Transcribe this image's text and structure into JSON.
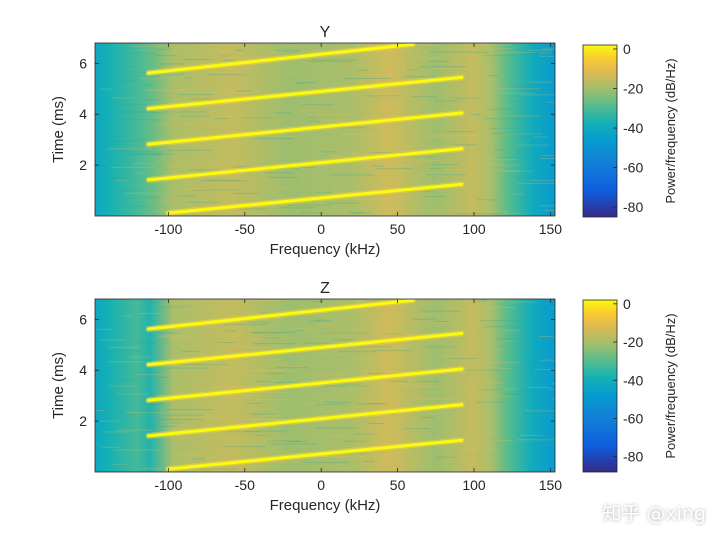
{
  "chart_data": [
    {
      "type": "heatmap",
      "title": "Y",
      "xlabel": "Frequency (kHz)",
      "ylabel": "Time (ms)",
      "xlim": [
        -148,
        153
      ],
      "ylim": [
        0,
        6.8
      ],
      "xticks": [
        -100,
        -50,
        0,
        50,
        100,
        150
      ],
      "yticks": [
        2,
        4,
        6
      ],
      "colorbar": {
        "label": "Power/frequency (dB/Hz)",
        "range": [
          -85,
          2
        ],
        "ticks": [
          0,
          -20,
          -40,
          -60,
          -80
        ]
      },
      "chirps": [
        {
          "t_start": 0.0,
          "t_end": 1.3,
          "f_start": -100,
          "f_end": 92
        },
        {
          "t_start": 1.3,
          "t_end": 2.7,
          "f_start": -113,
          "f_end": 92
        },
        {
          "t_start": 2.7,
          "t_end": 4.1,
          "f_start": -113,
          "f_end": 92
        },
        {
          "t_start": 4.1,
          "t_end": 5.5,
          "f_start": -113,
          "f_end": 92
        },
        {
          "t_start": 5.5,
          "t_end": 6.8,
          "f_start": -113,
          "f_end": 60
        }
      ]
    },
    {
      "type": "heatmap",
      "title": "Z",
      "xlabel": "Frequency (kHz)",
      "ylabel": "Time (ms)",
      "xlim": [
        -148,
        153
      ],
      "ylim": [
        0,
        6.8
      ],
      "xticks": [
        -100,
        -50,
        0,
        50,
        100,
        150
      ],
      "yticks": [
        2,
        4,
        6
      ],
      "colorbar": {
        "label": "Power/frequency (dB/Hz)",
        "range": [
          -88,
          2
        ],
        "ticks": [
          0,
          -20,
          -40,
          -60,
          -80
        ]
      },
      "chirps": [
        {
          "t_start": 0.0,
          "t_end": 1.3,
          "f_start": -100,
          "f_end": 92
        },
        {
          "t_start": 1.3,
          "t_end": 2.7,
          "f_start": -113,
          "f_end": 92
        },
        {
          "t_start": 2.7,
          "t_end": 4.1,
          "f_start": -113,
          "f_end": 92
        },
        {
          "t_start": 4.1,
          "t_end": 5.5,
          "f_start": -113,
          "f_end": 92
        },
        {
          "t_start": 5.5,
          "t_end": 6.8,
          "f_start": -113,
          "f_end": 60
        }
      ]
    }
  ],
  "watermark": "知乎 @xing"
}
